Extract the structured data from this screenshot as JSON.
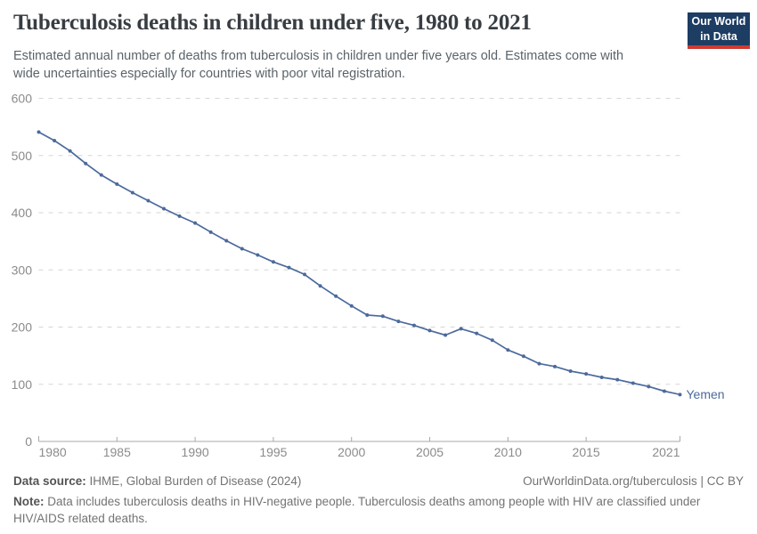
{
  "header": {
    "title": "Tuberculosis deaths in children under five, 1980 to 2021",
    "logo": {
      "line1": "Our World",
      "line2": "in Data"
    }
  },
  "subtitle": "Estimated annual number of deaths from tuberculosis in children under five years old. Estimates come with wide uncertainties especially for countries with poor vital registration.",
  "chart_data": {
    "type": "line",
    "title": "Tuberculosis deaths in children under five, 1980 to 2021",
    "x": [
      1980,
      1981,
      1982,
      1983,
      1984,
      1985,
      1986,
      1987,
      1988,
      1989,
      1990,
      1991,
      1992,
      1993,
      1994,
      1995,
      1996,
      1997,
      1998,
      1999,
      2000,
      2001,
      2002,
      2003,
      2004,
      2005,
      2006,
      2007,
      2008,
      2009,
      2010,
      2011,
      2012,
      2013,
      2014,
      2015,
      2016,
      2017,
      2018,
      2019,
      2020,
      2021
    ],
    "series": [
      {
        "name": "Yemen",
        "values": [
          541,
          526,
          508,
          486,
          466,
          450,
          435,
          421,
          407,
          394,
          382,
          366,
          351,
          337,
          326,
          314,
          304,
          292,
          272,
          254,
          237,
          221,
          219,
          210,
          203,
          194,
          186,
          197,
          189,
          177,
          160,
          149,
          136,
          131,
          123,
          118,
          112,
          108,
          102,
          96,
          88,
          82
        ]
      }
    ],
    "xlabel": "",
    "ylabel": "",
    "ylim": [
      0,
      600
    ],
    "yticks": [
      0,
      100,
      200,
      300,
      400,
      500,
      600
    ],
    "xticks": [
      1980,
      1985,
      1990,
      1995,
      2000,
      2005,
      2010,
      2015,
      2021
    ],
    "grid": "dashed horizontal",
    "legend_position": "end-of-line label",
    "line_color": "#4c6a9c"
  },
  "footer": {
    "datasource_label": "Data source:",
    "datasource_value": " IHME, Global Burden of Disease (2024)",
    "link": "OurWorldinData.org/tuberculosis | CC BY",
    "note_label": "Note:",
    "note_text": " Data includes tuberculosis deaths in HIV-negative people. Tuberculosis deaths among people with HIV are classified under HIV/AIDS related deaths."
  },
  "colors": {
    "line": "#4c6a9c",
    "grid": "#d6d6d6",
    "axis": "#a8a8a8",
    "tick_label": "#8b8b8b",
    "logo_navy": "#1d3d63",
    "logo_red": "#cc3b31"
  }
}
